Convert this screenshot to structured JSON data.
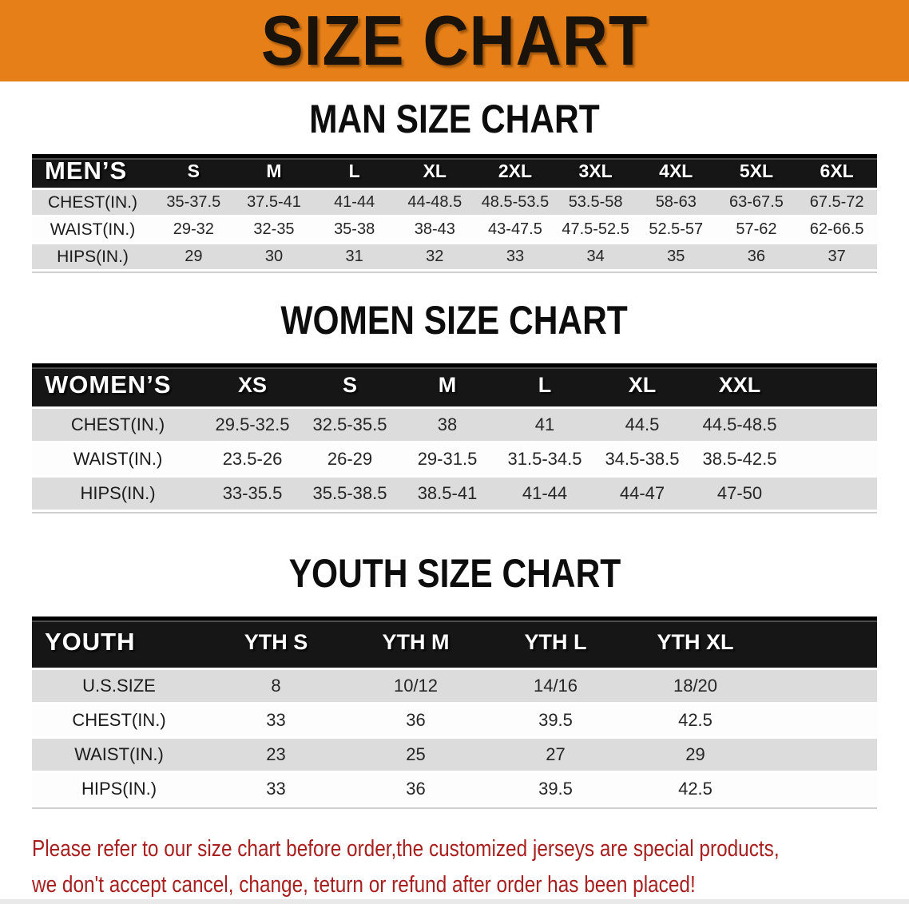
{
  "banner": {
    "title": "SIZE CHART"
  },
  "sections": [
    {
      "heading": "MAN SIZE CHART",
      "table": {
        "group_label": "MEN’S",
        "columns": [
          "S",
          "M",
          "L",
          "XL",
          "2XL",
          "3XL",
          "4XL",
          "5XL",
          "6XL"
        ],
        "rows": [
          {
            "label": "CHEST(IN.)",
            "values": [
              "35-37.5",
              "37.5-41",
              "41-44",
              "44-48.5",
              "48.5-53.5",
              "53.5-58",
              "58-63",
              "63-67.5",
              "67.5-72"
            ]
          },
          {
            "label": "WAIST(IN.)",
            "values": [
              "29-32",
              "32-35",
              "35-38",
              "38-43",
              "43-47.5",
              "47.5-52.5",
              "52.5-57",
              "57-62",
              "62-66.5"
            ]
          },
          {
            "label": "HIPS(IN.)",
            "values": [
              "29",
              "30",
              "31",
              "32",
              "33",
              "34",
              "35",
              "36",
              "37"
            ]
          }
        ]
      }
    },
    {
      "heading": "WOMEN SIZE CHART",
      "table": {
        "group_label": "WOMEN’S",
        "columns": [
          "XS",
          "S",
          "M",
          "L",
          "XL",
          "XXL"
        ],
        "rows": [
          {
            "label": "CHEST(IN.)",
            "values": [
              "29.5-32.5",
              "32.5-35.5",
              "38",
              "41",
              "44.5",
              "44.5-48.5"
            ]
          },
          {
            "label": "WAIST(IN.)",
            "values": [
              "23.5-26",
              "26-29",
              "29-31.5",
              "31.5-34.5",
              "34.5-38.5",
              "38.5-42.5"
            ]
          },
          {
            "label": "HIPS(IN.)",
            "values": [
              "33-35.5",
              "35.5-38.5",
              "38.5-41",
              "41-44",
              "44-47",
              "47-50"
            ]
          }
        ]
      }
    },
    {
      "heading": "YOUTH SIZE CHART",
      "table": {
        "group_label": "YOUTH",
        "columns": [
          "YTH S",
          "YTH M",
          "YTH L",
          "YTH XL"
        ],
        "rows": [
          {
            "label": "U.S.SIZE",
            "values": [
              "8",
              "10/12",
              "14/16",
              "18/20"
            ]
          },
          {
            "label": "CHEST(IN.)",
            "values": [
              "33",
              "36",
              "39.5",
              "42.5"
            ]
          },
          {
            "label": "WAIST(IN.)",
            "values": [
              "23",
              "25",
              "27",
              "29"
            ]
          },
          {
            "label": "HIPS(IN.)",
            "values": [
              "33",
              "36",
              "39.5",
              "42.5"
            ]
          }
        ]
      }
    }
  ],
  "footer": {
    "lines": [
      "Please refer to our size chart before order,the customized jerseys are special products,",
      "we don't accept cancel, change, teturn or refund after order has been placed!"
    ]
  },
  "colors": {
    "banner_bg": "#E67F18",
    "banner_text": "#1A130C",
    "header_band": "#161616",
    "row_alt": "#DCDCDC",
    "row_plain": "#FDFDFD",
    "footer_text": "#A81F1F"
  }
}
